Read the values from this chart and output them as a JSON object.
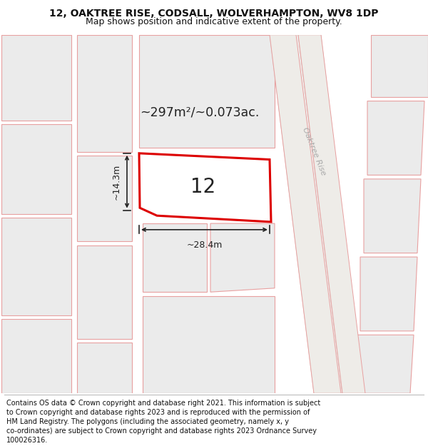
{
  "title_line1": "12, OAKTREE RISE, CODSALL, WOLVERHAMPTON, WV8 1DP",
  "title_line2": "Map shows position and indicative extent of the property.",
  "area_text": "~297m²/~0.073ac.",
  "label_12": "12",
  "dim_width": "~28.4m",
  "dim_height": "~14.3m",
  "road_label": "Oaktree Rise",
  "map_bg": "#f5f3f1",
  "plot_outline_color": "#e8a0a0",
  "highlight_edge_color": "#dd0000",
  "dim_color": "#222222",
  "title_fontsize": 10,
  "footer_fontsize": 7.0,
  "footer_lines": [
    "Contains OS data © Crown copyright and database right 2021. This information is subject",
    "to Crown copyright and database rights 2023 and is reproduced with the permission of",
    "HM Land Registry. The polygons (including the associated geometry, namely x, y",
    "co-ordinates) are subject to Crown copyright and database rights 2023 Ordnance Survey",
    "100026316."
  ]
}
